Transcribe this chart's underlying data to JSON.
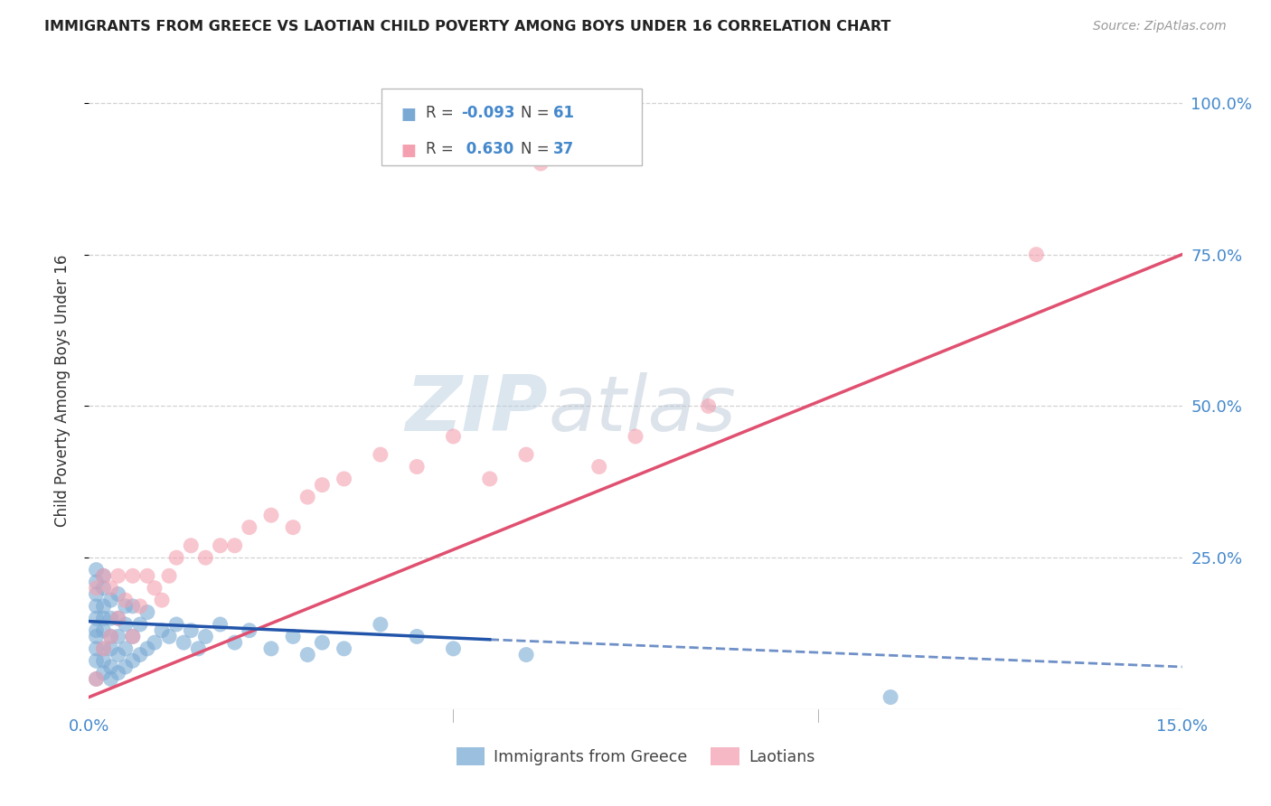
{
  "title": "IMMIGRANTS FROM GREECE VS LAOTIAN CHILD POVERTY AMONG BOYS UNDER 16 CORRELATION CHART",
  "source": "Source: ZipAtlas.com",
  "ylabel": "Child Poverty Among Boys Under 16",
  "xlim": [
    0.0,
    0.15
  ],
  "ylim": [
    0.0,
    1.05
  ],
  "yticks_right": [
    0.0,
    0.25,
    0.5,
    0.75,
    1.0
  ],
  "yticklabels_right": [
    "",
    "25.0%",
    "50.0%",
    "75.0%",
    "100.0%"
  ],
  "grid_color": "#cccccc",
  "background_color": "#ffffff",
  "watermark_zip": "ZIP",
  "watermark_atlas": "atlas",
  "color_blue": "#7aaad4",
  "color_pink": "#f4a0b0",
  "color_blue_line": "#2255aa",
  "color_pink_line": "#e05070",
  "color_blue_text": "#4488cc",
  "greece_x": [
    0.001,
    0.001,
    0.001,
    0.001,
    0.001,
    0.001,
    0.001,
    0.001,
    0.001,
    0.001,
    0.002,
    0.002,
    0.002,
    0.002,
    0.002,
    0.002,
    0.002,
    0.002,
    0.003,
    0.003,
    0.003,
    0.003,
    0.003,
    0.003,
    0.004,
    0.004,
    0.004,
    0.004,
    0.004,
    0.005,
    0.005,
    0.005,
    0.005,
    0.006,
    0.006,
    0.006,
    0.007,
    0.007,
    0.008,
    0.008,
    0.009,
    0.01,
    0.011,
    0.012,
    0.013,
    0.014,
    0.015,
    0.016,
    0.018,
    0.02,
    0.022,
    0.025,
    0.028,
    0.03,
    0.032,
    0.035,
    0.04,
    0.045,
    0.05,
    0.06,
    0.11
  ],
  "greece_y": [
    0.05,
    0.08,
    0.1,
    0.12,
    0.13,
    0.15,
    0.17,
    0.19,
    0.21,
    0.23,
    0.06,
    0.08,
    0.1,
    0.13,
    0.15,
    0.17,
    0.2,
    0.22,
    0.05,
    0.07,
    0.1,
    0.12,
    0.15,
    0.18,
    0.06,
    0.09,
    0.12,
    0.15,
    0.19,
    0.07,
    0.1,
    0.14,
    0.17,
    0.08,
    0.12,
    0.17,
    0.09,
    0.14,
    0.1,
    0.16,
    0.11,
    0.13,
    0.12,
    0.14,
    0.11,
    0.13,
    0.1,
    0.12,
    0.14,
    0.11,
    0.13,
    0.1,
    0.12,
    0.09,
    0.11,
    0.1,
    0.14,
    0.12,
    0.1,
    0.09,
    0.02
  ],
  "laotian_x": [
    0.001,
    0.001,
    0.002,
    0.002,
    0.003,
    0.003,
    0.004,
    0.004,
    0.005,
    0.006,
    0.006,
    0.007,
    0.008,
    0.009,
    0.01,
    0.011,
    0.012,
    0.014,
    0.016,
    0.018,
    0.02,
    0.022,
    0.025,
    0.028,
    0.03,
    0.032,
    0.035,
    0.04,
    0.045,
    0.05,
    0.055,
    0.06,
    0.062,
    0.07,
    0.075,
    0.085,
    0.13
  ],
  "laotian_y": [
    0.05,
    0.2,
    0.1,
    0.22,
    0.12,
    0.2,
    0.15,
    0.22,
    0.18,
    0.12,
    0.22,
    0.17,
    0.22,
    0.2,
    0.18,
    0.22,
    0.25,
    0.27,
    0.25,
    0.27,
    0.27,
    0.3,
    0.32,
    0.3,
    0.35,
    0.37,
    0.38,
    0.42,
    0.4,
    0.45,
    0.38,
    0.42,
    0.9,
    0.4,
    0.45,
    0.5,
    0.75
  ],
  "greece_R": "-0.093",
  "greece_N": "61",
  "laotian_R": "0.630",
  "laotian_N": "37"
}
